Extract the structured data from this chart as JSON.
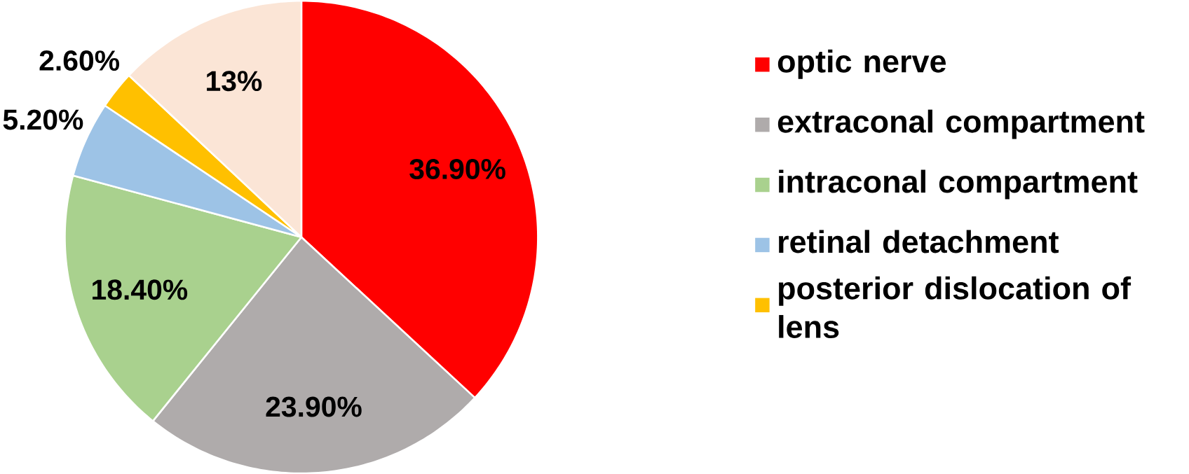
{
  "chart_data": {
    "type": "pie",
    "categories": [
      "optic nerve",
      "extraconal compartment",
      "intraconal compartment",
      "retinal detachment",
      "posterior dislocation of lens",
      null
    ],
    "values": [
      36.9,
      23.9,
      18.4,
      5.2,
      2.6,
      13
    ],
    "colors": [
      "#ff0000",
      "#afabab",
      "#a9d18e",
      "#9dc3e6",
      "#ffc000",
      "#fbe5d6"
    ],
    "value_labels": [
      "36.90%",
      "23.90%",
      "18.40%",
      "5.20%",
      "2.60%",
      "13%"
    ],
    "legend": "right"
  }
}
